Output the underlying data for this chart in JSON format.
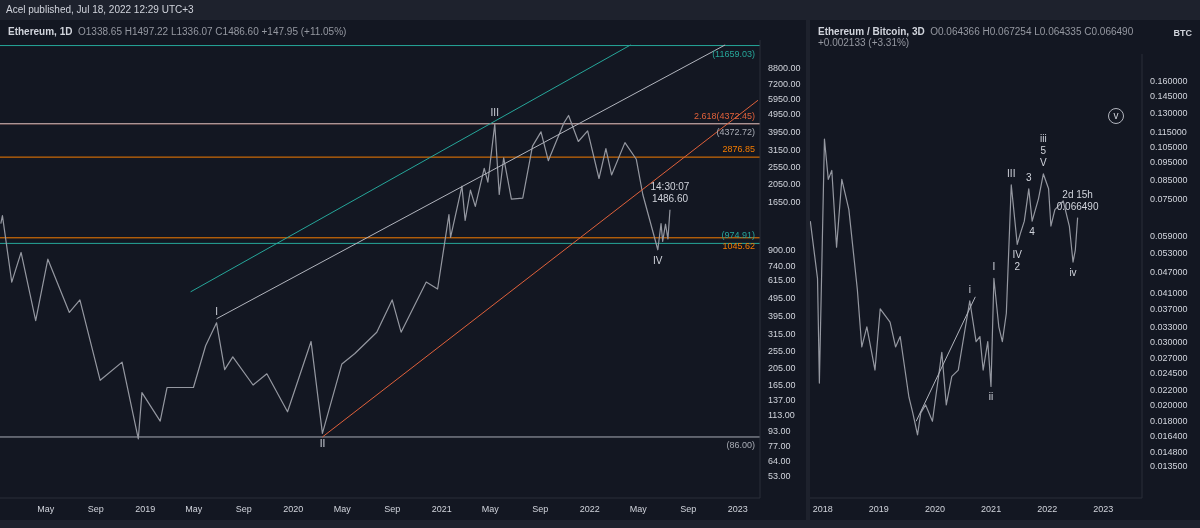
{
  "chart_data": [
    {
      "type": "line",
      "title": "Ethereum, 1D",
      "subtitle": "O1338.65 H1497.22 L1336.07 C1486.60 +147.95 (+11.05%)",
      "x": [
        "2018-01-10",
        "2018-01-14",
        "2018-02-06",
        "2018-03-01",
        "2018-04-06",
        "2018-05-06",
        "2018-06-28",
        "2018-07-24",
        "2018-09-12",
        "2018-11-05",
        "2018-12-15",
        "2018-12-24",
        "2019-02-07",
        "2019-02-24",
        "2019-04-30",
        "2019-05-30",
        "2019-06-26",
        "2019-07-16",
        "2019-08-05",
        "2019-09-24",
        "2019-10-28",
        "2019-12-18",
        "2020-02-14",
        "2020-03-13",
        "2020-04-30",
        "2020-06-01",
        "2020-07-25",
        "2020-09-01",
        "2020-09-23",
        "2020-11-24",
        "2020-12-22",
        "2021-01-19",
        "2021-01-23",
        "2021-02-20",
        "2021-02-28",
        "2021-03-13",
        "2021-03-25",
        "2021-04-16",
        "2021-04-25",
        "2021-05-12",
        "2021-05-23",
        "2021-06-03",
        "2021-06-22",
        "2021-07-20",
        "2021-08-13",
        "2021-09-03",
        "2021-09-21",
        "2021-10-29",
        "2021-11-10",
        "2021-12-04",
        "2021-12-27",
        "2022-01-24",
        "2022-02-10",
        "2022-02-24",
        "2022-03-29",
        "2022-04-26",
        "2022-05-12",
        "2022-06-18",
        "2022-06-26",
        "2022-06-30",
        "2022-07-07",
        "2022-07-13",
        "2022-07-18"
      ],
      "series": [
        {
          "color": "#9598a1",
          "values": [
            1250,
            1380,
            600,
            870,
            370,
            800,
            410,
            480,
            175,
            220,
            84,
            150,
            105,
            160,
            160,
            270,
            360,
            200,
            235,
            165,
            190,
            118,
            285,
            90,
            215,
            245,
            320,
            480,
            320,
            600,
            550,
            1400,
            1050,
            2000,
            1300,
            1900,
            1550,
            2500,
            2100,
            4350,
            1800,
            2850,
            1700,
            1720,
            3300,
            3950,
            2750,
            4400,
            4850,
            3500,
            4000,
            2200,
            3200,
            2300,
            3450,
            2800,
            1800,
            900,
            1250,
            1000,
            1240,
            1030,
            1486.6
          ]
        },
        {
          "type": "line",
          "color": "#26a69a",
          "x": [
            "2019-04-23",
            "2022-04-12"
          ],
          "values": [
            531,
            11750
          ]
        },
        {
          "type": "line",
          "color": "#b2b5be",
          "x": [
            "2019-06-26",
            "2022-12-01"
          ],
          "values": [
            379,
            11750
          ]
        },
        {
          "type": "line",
          "color": "#e0613b",
          "x": [
            "2020-03-13",
            "2023-02-20"
          ],
          "values": [
            86,
            5870
          ]
        }
      ],
      "xlim": [
        "2018-01-08",
        "2023-02-25"
      ],
      "xticks": [
        {
          "value": "2018-05-01",
          "label": "May"
        },
        {
          "value": "2018-09-01",
          "label": "Sep"
        },
        {
          "value": "2019-01-01",
          "label": "2019"
        },
        {
          "value": "2019-05-01",
          "label": "May"
        },
        {
          "value": "2019-09-01",
          "label": "Sep"
        },
        {
          "value": "2020-01-01",
          "label": "2020"
        },
        {
          "value": "2020-05-01",
          "label": "May"
        },
        {
          "value": "2020-09-01",
          "label": "Sep"
        },
        {
          "value": "2021-01-01",
          "label": "2021"
        },
        {
          "value": "2021-05-01",
          "label": "May"
        },
        {
          "value": "2021-09-01",
          "label": "Sep"
        },
        {
          "value": "2022-01-01",
          "label": "2022"
        },
        {
          "value": "2022-05-01",
          "label": "May"
        },
        {
          "value": "2022-09-01",
          "label": "Sep"
        },
        {
          "value": "2023-01-01",
          "label": "2023"
        }
      ],
      "ylim": [
        40,
        12500
      ],
      "log": true,
      "yticks": [
        {
          "value": 53,
          "label": "53.00"
        },
        {
          "value": 64,
          "label": "64.00"
        },
        {
          "value": 77,
          "label": "77.00"
        },
        {
          "value": 93,
          "label": "93.00"
        },
        {
          "value": 113,
          "label": "113.00"
        },
        {
          "value": 137,
          "label": "137.00"
        },
        {
          "value": 165,
          "label": "165.00"
        },
        {
          "value": 205,
          "label": "205.00"
        },
        {
          "value": 255,
          "label": "255.00"
        },
        {
          "value": 315,
          "label": "315.00"
        },
        {
          "value": 395,
          "label": "395.00"
        },
        {
          "value": 495,
          "label": "495.00"
        },
        {
          "value": 615,
          "label": "615.00"
        },
        {
          "value": 740,
          "label": "740.00"
        },
        {
          "value": 900,
          "label": "900.00"
        },
        {
          "value": 1650,
          "label": "1650.00"
        },
        {
          "value": 2050,
          "label": "2050.00"
        },
        {
          "value": 2550,
          "label": "2550.00"
        },
        {
          "value": 3150,
          "label": "3150.00"
        },
        {
          "value": 3950,
          "label": "3950.00"
        },
        {
          "value": 4950,
          "label": "4950.00"
        },
        {
          "value": 5950,
          "label": "5950.00"
        },
        {
          "value": 7200,
          "label": "7200.00"
        },
        {
          "value": 8800,
          "label": "8800.00"
        }
      ],
      "ref_lines": [
        {
          "axis": "y",
          "value": 11659.03,
          "label": "(11659.03)",
          "color": "#26a69a"
        },
        {
          "axis": "y",
          "value": 4372.45,
          "label": "2.618(4372.45)",
          "color": "#e0613b"
        },
        {
          "axis": "y",
          "value": 4372.72,
          "label": "(4372.72)",
          "color": "#a9acb5"
        },
        {
          "axis": "y",
          "value": 2876.85,
          "label": "2876.85",
          "color": "#f57c00"
        },
        {
          "axis": "y",
          "value": 1045.62,
          "label": "1045.62",
          "color": "#f57c00"
        },
        {
          "axis": "y",
          "value": 974.91,
          "label": "(974.91)",
          "color": "#26a69a"
        },
        {
          "axis": "y",
          "value": 86,
          "label": "(86.00)",
          "color": "#a9acb5"
        }
      ],
      "annotations": [
        "Acel published, Jul 18, 2022 12:29 UTC+3",
        {
          "text": "I",
          "x": "2019-06-26",
          "y": 360
        },
        {
          "text": "II",
          "x": "2020-03-13",
          "y": 90
        },
        {
          "text": "III",
          "x": "2021-05-12",
          "y": 4350
        },
        {
          "text": "IV",
          "x": "2022-06-18",
          "y": 900
        },
        {
          "text": "1486.60",
          "x": "2022-07-18",
          "y": 1486.6
        },
        {
          "text": "14:30:07",
          "x": "2022-07-18",
          "y": 1486.6
        }
      ]
    },
    {
      "type": "line",
      "title": "Ethereum / Bitcoin, 3D",
      "subtitle": "O0.064366 H0.067254 L0.064335 C0.066490 +0.002133 (+3.31%)",
      "ylabel": "BTC",
      "x": [
        "2017-10-12",
        "2017-11-28",
        "2017-12-10",
        "2018-01-12",
        "2018-02-06",
        "2018-03-01",
        "2018-04-01",
        "2018-05-05",
        "2018-06-20",
        "2018-08-14",
        "2018-09-12",
        "2018-10-15",
        "2018-12-07",
        "2019-01-10",
        "2019-03-15",
        "2019-04-20",
        "2019-05-20",
        "2019-07-16",
        "2019-08-10",
        "2019-09-10",
        "2019-10-01",
        "2019-11-01",
        "2019-12-16",
        "2020-02-15",
        "2020-03-15",
        "2020-04-20",
        "2020-06-01",
        "2020-08-15",
        "2020-09-25",
        "2020-10-20",
        "2020-11-10",
        "2020-12-10",
        "2020-12-31",
        "2021-01-19",
        "2021-02-20",
        "2021-03-15",
        "2021-04-10",
        "2021-05-12",
        "2021-06-20",
        "2021-07-10",
        "2021-08-05",
        "2021-09-03",
        "2021-09-25",
        "2021-11-05",
        "2021-12-07",
        "2022-01-10",
        "2022-01-25",
        "2022-02-20",
        "2022-04-15",
        "2022-05-25",
        "2022-06-18",
        "2022-07-03",
        "2022-07-18"
      ],
      "series": [
        {
          "color": "#9598a1",
          "values": [
            0.065,
            0.045,
            0.023,
            0.11,
            0.085,
            0.09,
            0.055,
            0.085,
            0.07,
            0.042,
            0.029,
            0.033,
            0.025,
            0.037,
            0.034,
            0.029,
            0.031,
            0.021,
            0.019,
            0.0165,
            0.019,
            0.02,
            0.018,
            0.028,
            0.02,
            0.024,
            0.025,
            0.039,
            0.03,
            0.031,
            0.025,
            0.03,
            0.0225,
            0.045,
            0.033,
            0.03,
            0.036,
            0.082,
            0.056,
            0.06,
            0.065,
            0.08,
            0.065,
            0.075,
            0.088,
            0.08,
            0.063,
            0.07,
            0.074,
            0.063,
            0.05,
            0.054,
            0.06649
          ]
        },
        {
          "type": "line",
          "color": "#b2b5be",
          "x": [
            "2019-09-01",
            "2020-09-20"
          ],
          "values": [
            0.018,
            0.04
          ]
        }
      ],
      "xlim": [
        "2017-10-10",
        "2023-09-10"
      ],
      "xticks": [
        {
          "value": "2018-01-01",
          "label": "2018"
        },
        {
          "value": "2019-01-01",
          "label": "2019"
        },
        {
          "value": "2020-01-01",
          "label": "2020"
        },
        {
          "value": "2021-01-01",
          "label": "2021"
        },
        {
          "value": "2022-01-01",
          "label": "2022"
        },
        {
          "value": "2023-01-01",
          "label": "2023"
        }
      ],
      "ylim": [
        0.011,
        0.19
      ],
      "log": true,
      "yticks": [
        {
          "value": 0.0135,
          "label": "0.013500"
        },
        {
          "value": 0.0148,
          "label": "0.014800"
        },
        {
          "value": 0.0164,
          "label": "0.016400"
        },
        {
          "value": 0.018,
          "label": "0.018000"
        },
        {
          "value": 0.02,
          "label": "0.020000"
        },
        {
          "value": 0.022,
          "label": "0.022000"
        },
        {
          "value": 0.0245,
          "label": "0.024500"
        },
        {
          "value": 0.027,
          "label": "0.027000"
        },
        {
          "value": 0.03,
          "label": "0.030000"
        },
        {
          "value": 0.033,
          "label": "0.033000"
        },
        {
          "value": 0.037,
          "label": "0.037000"
        },
        {
          "value": 0.041,
          "label": "0.041000"
        },
        {
          "value": 0.047,
          "label": "0.047000"
        },
        {
          "value": 0.053,
          "label": "0.053000"
        },
        {
          "value": 0.059,
          "label": "0.059000"
        },
        {
          "value": 0.075,
          "label": "0.075000"
        },
        {
          "value": 0.085,
          "label": "0.085000"
        },
        {
          "value": 0.095,
          "label": "0.095000"
        },
        {
          "value": 0.105,
          "label": "0.105000"
        },
        {
          "value": 0.115,
          "label": "0.115000"
        },
        {
          "value": 0.13,
          "label": "0.130000"
        },
        {
          "value": 0.145,
          "label": "0.145000"
        },
        {
          "value": 0.16,
          "label": "0.160000"
        }
      ],
      "annotations": [
        {
          "text": "i",
          "x": "2020-08-15",
          "y": 0.039
        },
        {
          "text": "ii",
          "x": "2020-12-31",
          "y": 0.0225
        },
        {
          "text": "I",
          "x": "2021-01-19",
          "y": 0.045
        },
        {
          "text": "III",
          "x": "2021-05-12",
          "y": 0.082
        },
        {
          "text": "IV",
          "x": "2021-06-20",
          "y": 0.056
        },
        {
          "text": "2",
          "x": "2021-06-20",
          "y": 0.056
        },
        {
          "text": "3",
          "x": "2021-09-03",
          "y": 0.08
        },
        {
          "text": "4",
          "x": "2021-09-25",
          "y": 0.065
        },
        {
          "text": "V",
          "x": "2021-12-07",
          "y": 0.088
        },
        {
          "text": "5",
          "x": "2021-12-07",
          "y": 0.088
        },
        {
          "text": "iii",
          "x": "2021-12-07",
          "y": 0.088
        },
        {
          "text": "iv",
          "x": "2022-06-18",
          "y": 0.05
        },
        "v",
        {
          "text": "0.066490",
          "x": "2022-07-18",
          "y": 0.06649
        },
        {
          "text": "2d 15h",
          "x": "2022-07-18",
          "y": 0.06649
        }
      ]
    }
  ]
}
